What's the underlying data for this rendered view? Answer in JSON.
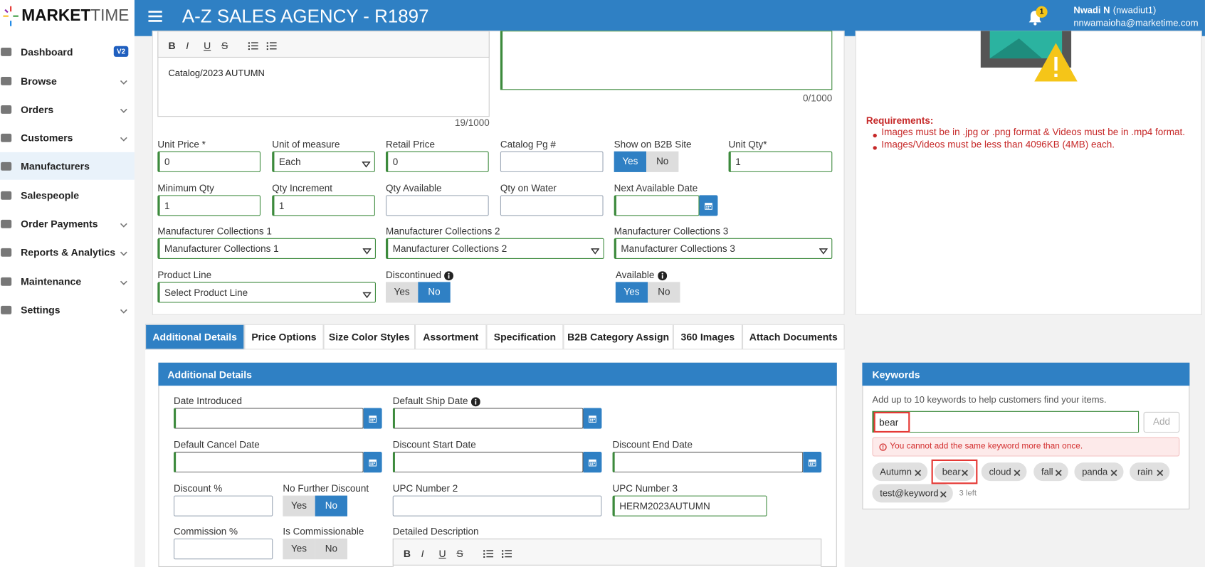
{
  "header": {
    "logo_a": "MARKET",
    "logo_b": "TIME",
    "title": "A-Z SALES AGENCY - R1897",
    "badge": "1",
    "user_name": "Nwadi N",
    "user_id": "(nwadiut1)",
    "email": "nnwamaioha@marketime.com"
  },
  "sidebar": [
    {
      "label": "Dashboard",
      "badge": "V2"
    },
    {
      "label": "Browse",
      "expand": true
    },
    {
      "label": "Orders",
      "expand": true
    },
    {
      "label": "Customers",
      "expand": true
    },
    {
      "label": "Manufacturers"
    },
    {
      "label": "Salespeople"
    },
    {
      "label": "Order Payments",
      "expand": true
    },
    {
      "label": "Reports & Analytics",
      "expand": true
    },
    {
      "label": "Maintenance",
      "expand": true
    },
    {
      "label": "Settings",
      "expand": true
    }
  ],
  "editor": {
    "toolbar": [
      "B",
      "I",
      "U",
      "S"
    ],
    "text": "Catalog/2023 AUTUMN",
    "count": "19/1000"
  },
  "notes_count": "0/1000",
  "top_fields": [
    {
      "label": "Unit Price *",
      "value": "0"
    },
    {
      "label": "Unit of measure",
      "value": "Each"
    },
    {
      "label": "Retail Price",
      "value": "0"
    },
    {
      "label": "Catalog Pg #"
    },
    {
      "label": "Show on B2B Site",
      "options": [
        "Yes",
        "No"
      ],
      "selected": "Yes"
    },
    {
      "label": "Unit Qty*",
      "value": "1"
    },
    {
      "label": "Minimum Qty",
      "value": "1"
    },
    {
      "label": "Qty Increment",
      "value": "1"
    },
    {
      "label": "Qty Available"
    },
    {
      "label": "Qty on Water"
    },
    {
      "label": "Next Available Date"
    },
    {
      "label": "Manufacturer Collections 1",
      "value": "Manufacturer Collections 1"
    },
    {
      "label": "Manufacturer Collections 2",
      "value": "Manufacturer Collections 2"
    },
    {
      "label": "Manufacturer Collections 3",
      "value": "Manufacturer Collections 3"
    },
    {
      "label": "Product Line",
      "value": "Select Product Line"
    },
    {
      "label": "Discontinued",
      "info": true,
      "options": [
        "Yes",
        "No"
      ],
      "selected": "No"
    },
    {
      "label": "Available",
      "info": true,
      "options": [
        "Yes",
        "No"
      ],
      "selected": "Yes"
    }
  ],
  "requirements": {
    "title": "Requirements:",
    "items": [
      "Images must be in .jpg or .png format & Videos must be in .mp4 format.",
      "Images/Videos must be less than 4096KB (4MB) each."
    ]
  },
  "tabs": [
    "Additional Details",
    "Price Options",
    "Size Color Styles",
    "Assortment",
    "Specification",
    "B2B Category Assign",
    "360 Images",
    "Attach Documents"
  ],
  "additional": {
    "title": "Additional Details",
    "fields": [
      {
        "label": "Date Introduced"
      },
      {
        "label": "Default Ship Date",
        "info": true
      },
      {
        "label": "Default Cancel Date"
      },
      {
        "label": "Discount Start Date"
      },
      {
        "label": "Discount End Date"
      },
      {
        "label": "Discount %"
      },
      {
        "label": "No Further Discount",
        "options": [
          "Yes",
          "No"
        ],
        "selected": "No"
      },
      {
        "label": "UPC Number 2"
      },
      {
        "label": "UPC Number 3",
        "value": "HERM2023AUTUMN"
      },
      {
        "label": "Commission %"
      },
      {
        "label": "Is Commissionable",
        "options": [
          "Yes",
          "No"
        ]
      },
      {
        "label": "Detailed Description"
      }
    ]
  },
  "keywords": {
    "title": "Keywords",
    "hint": "Add up to 10 keywords to help customers find your items.",
    "input": "bear",
    "button": "Add",
    "error": "You cannot add the same keyword more than once.",
    "chips": [
      "Autumn",
      "bear",
      "cloud",
      "fall",
      "panda",
      "rain",
      "test@keyword"
    ],
    "remaining": "3 left"
  }
}
